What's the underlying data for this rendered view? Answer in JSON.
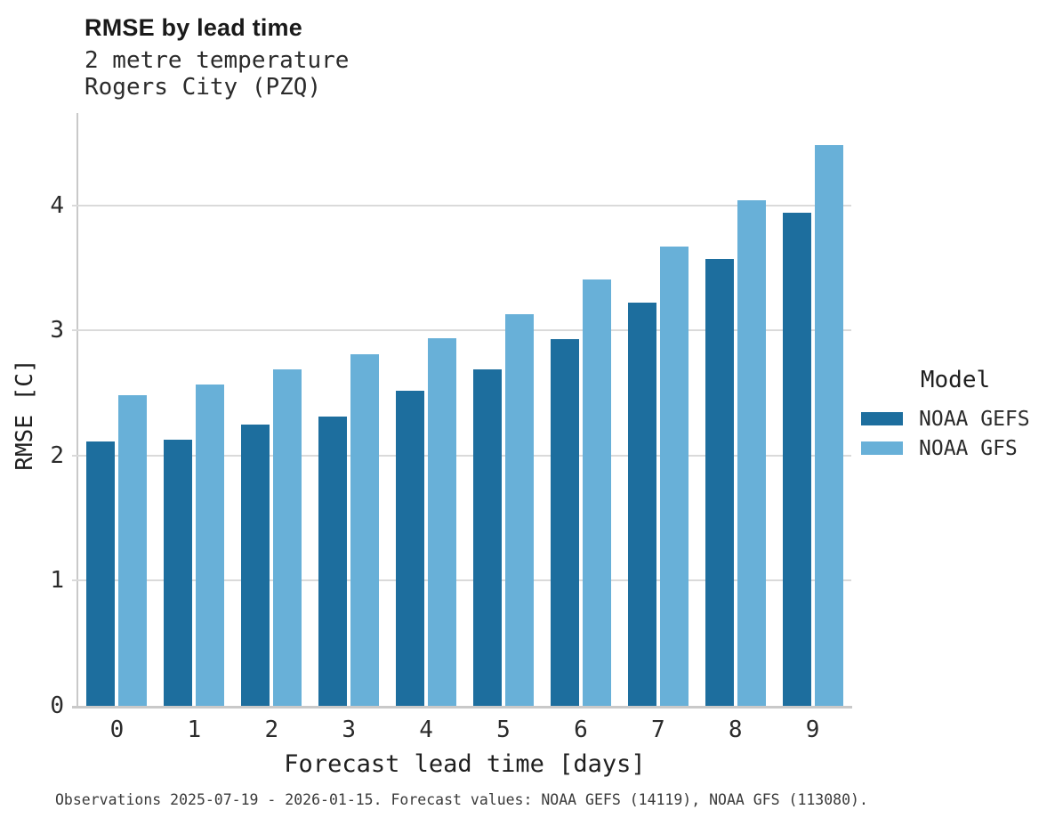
{
  "header": {
    "title": "RMSE by lead time",
    "subtitle1": "2 metre temperature",
    "subtitle2": "Rogers City (PZQ)"
  },
  "footer": "Observations 2025-07-19 - 2026-01-15. Forecast values: NOAA GEFS (14119), NOAA GFS (113080).",
  "legend": {
    "title": "Model",
    "entries": [
      {
        "label": "NOAA GEFS",
        "color": "#1d6e9e"
      },
      {
        "label": "NOAA GFS",
        "color": "#68b0d8"
      }
    ]
  },
  "colors": {
    "gefs": "#1d6e9e",
    "gfs": "#68b0d8",
    "gridline": "#dadada",
    "spine": "#c9c9c9"
  },
  "chart_data": {
    "type": "bar",
    "title": "RMSE by lead time",
    "subtitle": [
      "2 metre temperature",
      "Rogers City (PZQ)"
    ],
    "categories": [
      "0",
      "1",
      "2",
      "3",
      "4",
      "5",
      "6",
      "7",
      "8",
      "9"
    ],
    "series": [
      {
        "name": "NOAA GEFS",
        "color": "#1d6e9e",
        "values": [
          2.11,
          2.13,
          2.25,
          2.31,
          2.52,
          2.69,
          2.93,
          3.22,
          3.57,
          3.94
        ]
      },
      {
        "name": "NOAA GFS",
        "color": "#68b0d8",
        "values": [
          2.48,
          2.57,
          2.69,
          2.81,
          2.94,
          3.13,
          3.41,
          3.67,
          4.04,
          4.48
        ]
      }
    ],
    "xlabel": "Forecast lead time [days]",
    "ylabel": "RMSE [C]",
    "ylim": [
      0,
      4.73
    ],
    "yticks": [
      0,
      1,
      2,
      3,
      4
    ],
    "grid": true,
    "legend_title": "Model",
    "legend_position": "right",
    "caption": "Observations 2025-07-19 - 2026-01-15. Forecast values: NOAA GEFS (14119), NOAA GFS (113080)."
  }
}
